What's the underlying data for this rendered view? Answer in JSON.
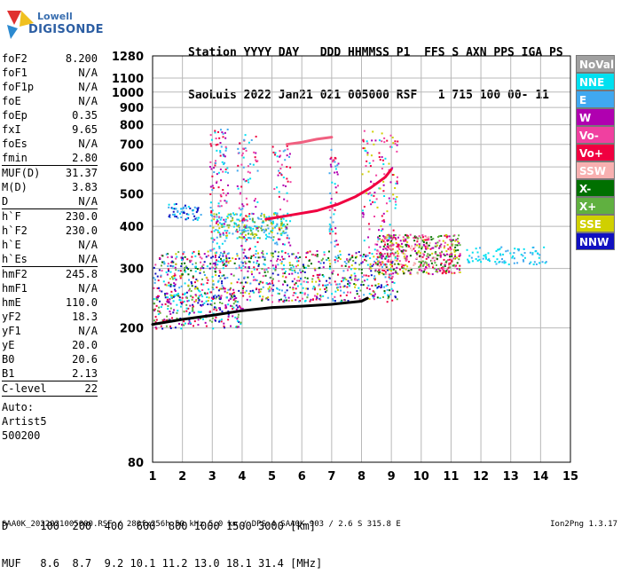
{
  "logo": {
    "top": "Lowell",
    "bottom": "DIGISONDE"
  },
  "header": {
    "line1": "Station YYYY DAY   DDD HHMMSS P1  FFS S AXN PPS IGA PS",
    "line2": "SaoLuis 2022 Jan21 021 005000 RSF   1 715 100 00- 11"
  },
  "params": [
    {
      "label": "foF2",
      "value": "8.200"
    },
    {
      "label": "foF1",
      "value": "N/A"
    },
    {
      "label": "foF1p",
      "value": "N/A"
    },
    {
      "label": "foE",
      "value": "N/A"
    },
    {
      "label": "foEp",
      "value": "0.35"
    },
    {
      "label": "fxI",
      "value": "9.65"
    },
    {
      "label": "foEs",
      "value": "N/A"
    },
    {
      "label": "fmin",
      "value": "2.80"
    },
    {
      "label": "MUF(D)",
      "value": "31.37"
    },
    {
      "label": "M(D)",
      "value": "3.83"
    },
    {
      "label": "D",
      "value": "N/A"
    },
    {
      "label": "h`F",
      "value": "230.0"
    },
    {
      "label": "h`F2",
      "value": "230.0"
    },
    {
      "label": "h`E",
      "value": "N/A"
    },
    {
      "label": "h`Es",
      "value": "N/A"
    },
    {
      "label": "hmF2",
      "value": "245.8"
    },
    {
      "label": "hmF1",
      "value": "N/A"
    },
    {
      "label": "hmE",
      "value": "110.0"
    },
    {
      "label": "yF2",
      "value": "18.3"
    },
    {
      "label": "yF1",
      "value": "N/A"
    },
    {
      "label": "yE",
      "value": "20.0"
    },
    {
      "label": "B0",
      "value": "20.6"
    },
    {
      "label": "B1",
      "value": "2.13"
    },
    {
      "label": "C-level",
      "value": "22"
    }
  ],
  "auto": {
    "line1": "Auto:",
    "line2": "Artist5",
    "line3": "500200"
  },
  "legend": [
    {
      "label": "NoVal",
      "color": "#a0a0a0"
    },
    {
      "label": "NNE",
      "color": "#00e0f0"
    },
    {
      "label": "E",
      "color": "#40a8f0"
    },
    {
      "label": "W",
      "color": "#b000b0"
    },
    {
      "label": "Vo-",
      "color": "#f040a0"
    },
    {
      "label": "Vo+",
      "color": "#f00040"
    },
    {
      "label": "SSW",
      "color": "#f8b0b0"
    },
    {
      "label": "X-",
      "color": "#007000"
    },
    {
      "label": "X+",
      "color": "#60b040"
    },
    {
      "label": "SSE",
      "color": "#d0d000"
    },
    {
      "label": "NNW",
      "color": "#1010c0"
    }
  ],
  "bottom": {
    "line1": "D     100  200  400  600  800 1000 1500 3000 [km]",
    "line2": "MUF   8.6  8.7  9.2 10.1 11.2 13.0 18.1 31.4 [MHz]"
  },
  "footer": {
    "left": "SAA0K_2022021005000.RSF / 280fx256h 50 kHz 5.0 km / DPS-4 SAA0K 903 / 2.6 S 315.8 E",
    "right": "Ion2Png 1.3.17"
  },
  "chart_data": {
    "type": "scatter",
    "title": "",
    "xlabel": "",
    "ylabel": "",
    "xlim": [
      1,
      15
    ],
    "ylim": [
      80,
      1280
    ],
    "y_scale": "log",
    "x_ticks": [
      1,
      2,
      3,
      4,
      5,
      6,
      7,
      8,
      9,
      10,
      11,
      12,
      13,
      14,
      15
    ],
    "y_ticks": [
      80,
      200,
      300,
      400,
      500,
      600,
      700,
      800,
      900,
      1000,
      1100,
      1280
    ],
    "grid": true,
    "traces": [
      {
        "name": "ordinary trace",
        "color": "#f00040",
        "x": [
          4.8,
          5.5,
          6.5,
          7.2,
          7.8,
          8.3,
          8.8,
          9.0
        ],
        "y": [
          420,
          430,
          445,
          465,
          490,
          520,
          560,
          590
        ]
      },
      {
        "name": "upper trace",
        "color": "#f06080",
        "x": [
          5.5,
          6.0,
          6.5,
          7.0
        ],
        "y": [
          700,
          710,
          725,
          735
        ]
      },
      {
        "name": "virtual height profile",
        "color": "#000000",
        "x": [
          1.0,
          2.0,
          3.0,
          4.0,
          5.0,
          6.0,
          7.0,
          8.0,
          8.2
        ],
        "y": [
          205,
          212,
          218,
          225,
          230,
          232,
          235,
          240,
          245
        ]
      }
    ]
  }
}
